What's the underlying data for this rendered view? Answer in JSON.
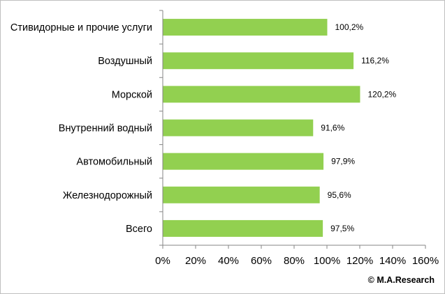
{
  "chart_data": {
    "type": "bar",
    "orientation": "horizontal",
    "categories": [
      "Стивидорные и прочие услуги",
      "Воздушный",
      "Морской",
      "Внутренний водный",
      "Автомобильный",
      "Железнодорожный",
      "Всего"
    ],
    "values": [
      100.2,
      116.2,
      120.2,
      91.6,
      97.9,
      95.6,
      97.5
    ],
    "data_labels": [
      "100,2%",
      "116,2%",
      "120,2%",
      "91,6%",
      "97,9%",
      "95,6%",
      "97,5%"
    ],
    "xlim": [
      0,
      160
    ],
    "xticks": [
      0,
      20,
      40,
      60,
      80,
      100,
      120,
      140,
      160
    ],
    "xtick_labels": [
      "0%",
      "20%",
      "40%",
      "60%",
      "80%",
      "100%",
      "120%",
      "140%",
      "160%"
    ],
    "grid": false,
    "legend": "none",
    "colors": {
      "bar": "#92d050",
      "axis": "#868686"
    }
  },
  "copyright": "© M.A.Research"
}
